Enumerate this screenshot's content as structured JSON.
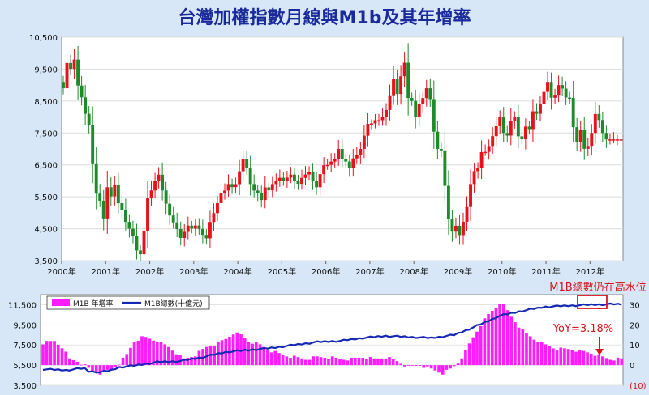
{
  "title": "台灣加權指數月線與M1b及其年增率",
  "colors": {
    "background": "#d7e7f7",
    "plot_bg": "#ffffff",
    "title": "#1a2a9a",
    "up": "#e8101a",
    "down": "#1f8a2a",
    "bars": "#ff1cff",
    "m1b_line": "#1428b4",
    "annotation": "#d6151c"
  },
  "chart_data": [
    {
      "type": "candlestick",
      "y_ticks": [
        "10,500",
        "9,500",
        "8,500",
        "7,500",
        "6,500",
        "5,500",
        "4,500",
        "3,500"
      ],
      "ylim": [
        3500,
        10500
      ],
      "x_ticks": [
        "2000年",
        "2001年",
        "2002年",
        "2003年",
        "2004年",
        "2005年",
        "2006年",
        "2007年",
        "2008年",
        "2009年",
        "2010年",
        "2011年",
        "2012年"
      ],
      "x_range": [
        2000.0,
        2012.75
      ],
      "anchors": [
        [
          2000.0,
          8900
        ],
        [
          2000.08,
          9700
        ],
        [
          2000.17,
          9500
        ],
        [
          2000.25,
          9800
        ],
        [
          2000.33,
          9000
        ],
        [
          2000.42,
          8600
        ],
        [
          2000.5,
          8100
        ],
        [
          2000.58,
          7800
        ],
        [
          2000.67,
          6500
        ],
        [
          2000.75,
          5600
        ],
        [
          2000.83,
          5400
        ],
        [
          2000.92,
          4800
        ],
        [
          2001.0,
          5800
        ],
        [
          2001.08,
          5500
        ],
        [
          2001.17,
          5900
        ],
        [
          2001.25,
          5300
        ],
        [
          2001.33,
          5100
        ],
        [
          2001.42,
          4700
        ],
        [
          2001.5,
          4500
        ],
        [
          2001.58,
          4300
        ],
        [
          2001.67,
          3800
        ],
        [
          2001.75,
          3700
        ],
        [
          2001.83,
          4400
        ],
        [
          2001.92,
          5500
        ],
        [
          2002.0,
          5700
        ],
        [
          2002.08,
          6000
        ],
        [
          2002.17,
          6200
        ],
        [
          2002.25,
          5700
        ],
        [
          2002.33,
          5300
        ],
        [
          2002.42,
          4900
        ],
        [
          2002.5,
          4700
        ],
        [
          2002.58,
          4500
        ],
        [
          2002.67,
          4200
        ],
        [
          2002.75,
          4400
        ],
        [
          2002.83,
          4600
        ],
        [
          2002.92,
          4500
        ],
        [
          2003.0,
          4600
        ],
        [
          2003.08,
          4500
        ],
        [
          2003.17,
          4300
        ],
        [
          2003.25,
          4200
        ],
        [
          2003.33,
          4700
        ],
        [
          2003.42,
          5000
        ],
        [
          2003.5,
          5300
        ],
        [
          2003.58,
          5600
        ],
        [
          2003.67,
          5700
        ],
        [
          2003.75,
          5900
        ],
        [
          2003.83,
          5800
        ],
        [
          2003.92,
          5900
        ],
        [
          2004.0,
          6300
        ],
        [
          2004.08,
          6700
        ],
        [
          2004.17,
          6400
        ],
        [
          2004.25,
          5900
        ],
        [
          2004.33,
          5700
        ],
        [
          2004.42,
          5600
        ],
        [
          2004.5,
          5400
        ],
        [
          2004.58,
          5800
        ],
        [
          2004.67,
          5700
        ],
        [
          2004.75,
          5900
        ],
        [
          2004.83,
          6000
        ],
        [
          2004.92,
          6100
        ],
        [
          2005.0,
          6000
        ],
        [
          2005.08,
          6100
        ],
        [
          2005.17,
          6200
        ],
        [
          2005.25,
          6000
        ],
        [
          2005.33,
          5900
        ],
        [
          2005.42,
          6100
        ],
        [
          2005.5,
          6200
        ],
        [
          2005.58,
          6300
        ],
        [
          2005.67,
          6000
        ],
        [
          2005.75,
          5800
        ],
        [
          2005.83,
          6200
        ],
        [
          2005.92,
          6500
        ],
        [
          2006.0,
          6500
        ],
        [
          2006.08,
          6600
        ],
        [
          2006.17,
          6700
        ],
        [
          2006.25,
          7000
        ],
        [
          2006.33,
          6700
        ],
        [
          2006.42,
          6600
        ],
        [
          2006.5,
          6400
        ],
        [
          2006.58,
          6700
        ],
        [
          2006.67,
          6800
        ],
        [
          2006.75,
          7000
        ],
        [
          2006.83,
          7400
        ],
        [
          2006.92,
          7800
        ],
        [
          2007.0,
          7800
        ],
        [
          2007.08,
          7900
        ],
        [
          2007.17,
          7900
        ],
        [
          2007.25,
          8000
        ],
        [
          2007.33,
          8200
        ],
        [
          2007.42,
          8700
        ],
        [
          2007.5,
          9200
        ],
        [
          2007.58,
          8700
        ],
        [
          2007.67,
          9300
        ],
        [
          2007.75,
          9700
        ],
        [
          2007.83,
          8600
        ],
        [
          2007.92,
          8500
        ],
        [
          2008.0,
          8000
        ],
        [
          2008.08,
          8400
        ],
        [
          2008.17,
          8600
        ],
        [
          2008.25,
          8900
        ],
        [
          2008.33,
          8600
        ],
        [
          2008.42,
          7500
        ],
        [
          2008.5,
          7000
        ],
        [
          2008.58,
          7000
        ],
        [
          2008.67,
          5800
        ],
        [
          2008.75,
          4800
        ],
        [
          2008.83,
          4400
        ],
        [
          2008.92,
          4600
        ],
        [
          2009.0,
          4300
        ],
        [
          2009.08,
          4700
        ],
        [
          2009.17,
          5200
        ],
        [
          2009.25,
          5900
        ],
        [
          2009.33,
          6300
        ],
        [
          2009.42,
          6400
        ],
        [
          2009.5,
          6900
        ],
        [
          2009.58,
          6900
        ],
        [
          2009.67,
          7100
        ],
        [
          2009.75,
          7400
        ],
        [
          2009.83,
          7700
        ],
        [
          2009.92,
          8000
        ],
        [
          2010.0,
          7500
        ],
        [
          2010.08,
          7400
        ],
        [
          2010.17,
          7900
        ],
        [
          2010.25,
          8000
        ],
        [
          2010.33,
          7400
        ],
        [
          2010.42,
          7300
        ],
        [
          2010.5,
          7700
        ],
        [
          2010.58,
          7600
        ],
        [
          2010.67,
          8200
        ],
        [
          2010.75,
          8100
        ],
        [
          2010.83,
          8400
        ],
        [
          2010.92,
          8800
        ],
        [
          2011.0,
          9100
        ],
        [
          2011.08,
          8600
        ],
        [
          2011.17,
          8700
        ],
        [
          2011.25,
          9000
        ],
        [
          2011.33,
          8900
        ],
        [
          2011.42,
          8600
        ],
        [
          2011.5,
          8600
        ],
        [
          2011.58,
          7700
        ],
        [
          2011.67,
          7200
        ],
        [
          2011.75,
          7600
        ],
        [
          2011.83,
          7000
        ],
        [
          2011.92,
          7100
        ],
        [
          2012.0,
          7500
        ],
        [
          2012.08,
          8100
        ],
        [
          2012.17,
          7900
        ],
        [
          2012.25,
          7500
        ],
        [
          2012.33,
          7300
        ],
        [
          2012.42,
          7300
        ],
        [
          2012.5,
          7300
        ]
      ]
    },
    {
      "type": "bar+line",
      "left_ticks": [
        "11,500",
        "9,500",
        "7,500",
        "5,500",
        "3,500"
      ],
      "left_ylim": [
        3500,
        12500
      ],
      "right_ticks": [
        "30",
        "20",
        "10",
        "0",
        "(10)"
      ],
      "right_ylim": [
        -10,
        35
      ],
      "legend": [
        "M1B 年增率",
        "M1B總數(十億元)"
      ],
      "bar_anchors": [
        [
          2000.0,
          11
        ],
        [
          2000.25,
          12
        ],
        [
          2000.42,
          9
        ],
        [
          2000.58,
          3
        ],
        [
          2000.75,
          2
        ],
        [
          2000.9,
          0
        ],
        [
          2001.08,
          -3
        ],
        [
          2001.25,
          -4
        ],
        [
          2001.5,
          -2
        ],
        [
          2001.67,
          1
        ],
        [
          2001.83,
          5
        ],
        [
          2002.0,
          12
        ],
        [
          2002.2,
          14
        ],
        [
          2002.5,
          12
        ],
        [
          2002.75,
          9
        ],
        [
          2002.92,
          6
        ],
        [
          2003.08,
          3
        ],
        [
          2003.33,
          5
        ],
        [
          2003.58,
          9
        ],
        [
          2003.83,
          11
        ],
        [
          2004.0,
          13
        ],
        [
          2004.17,
          16
        ],
        [
          2004.33,
          15
        ],
        [
          2004.5,
          12
        ],
        [
          2004.75,
          10
        ],
        [
          2005.0,
          7
        ],
        [
          2005.25,
          5
        ],
        [
          2005.5,
          4
        ],
        [
          2005.75,
          3
        ],
        [
          2006.0,
          4
        ],
        [
          2006.25,
          4
        ],
        [
          2006.5,
          3
        ],
        [
          2006.75,
          3
        ],
        [
          2007.0,
          4
        ],
        [
          2007.25,
          3
        ],
        [
          2007.5,
          4
        ],
        [
          2007.75,
          2
        ],
        [
          2008.0,
          -1
        ],
        [
          2008.25,
          0
        ],
        [
          2008.5,
          -2
        ],
        [
          2008.75,
          -4
        ],
        [
          2008.92,
          -2
        ],
        [
          2009.08,
          1
        ],
        [
          2009.25,
          7
        ],
        [
          2009.42,
          14
        ],
        [
          2009.58,
          20
        ],
        [
          2009.75,
          25
        ],
        [
          2009.92,
          29
        ],
        [
          2010.0,
          31
        ],
        [
          2010.08,
          30
        ],
        [
          2010.25,
          24
        ],
        [
          2010.5,
          17
        ],
        [
          2010.75,
          13
        ],
        [
          2011.0,
          10
        ],
        [
          2011.25,
          8
        ],
        [
          2011.5,
          8
        ],
        [
          2011.75,
          7
        ],
        [
          2012.0,
          6
        ],
        [
          2012.25,
          4
        ],
        [
          2012.42,
          3
        ]
      ],
      "line_anchors": [
        [
          2000.0,
          5100
        ],
        [
          2000.5,
          5000
        ],
        [
          2000.9,
          5200
        ],
        [
          2001.0,
          4900
        ],
        [
          2001.25,
          4800
        ],
        [
          2001.5,
          5000
        ],
        [
          2001.67,
          5300
        ],
        [
          2002.0,
          5450
        ],
        [
          2002.5,
          5800
        ],
        [
          2003.0,
          5900
        ],
        [
          2003.5,
          6300
        ],
        [
          2004.0,
          6800
        ],
        [
          2004.5,
          7000
        ],
        [
          2005.0,
          7200
        ],
        [
          2005.5,
          7500
        ],
        [
          2006.0,
          7800
        ],
        [
          2006.5,
          7900
        ],
        [
          2007.0,
          8200
        ],
        [
          2007.5,
          8400
        ],
        [
          2008.0,
          8300
        ],
        [
          2008.5,
          8200
        ],
        [
          2009.0,
          8500
        ],
        [
          2009.5,
          9400
        ],
        [
          2010.0,
          10400
        ],
        [
          2010.5,
          10900
        ],
        [
          2011.0,
          11300
        ],
        [
          2011.5,
          11400
        ],
        [
          2012.0,
          11500
        ],
        [
          2012.42,
          11550
        ]
      ],
      "line_right_value": 31
    }
  ],
  "annotations": {
    "m1b_note": "M1B總數仍在高水位",
    "yoy_note": "YoY=3.18%"
  }
}
